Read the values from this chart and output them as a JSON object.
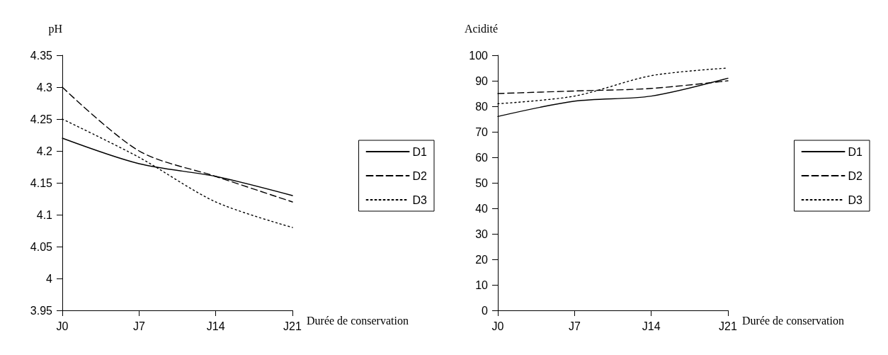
{
  "chart_data": [
    {
      "type": "line",
      "ylabel": "pH",
      "xlabel": "Durée de conservation",
      "categories": [
        "J0",
        "J7",
        "J14",
        "J21"
      ],
      "ylim": [
        3.95,
        4.35
      ],
      "yticks": [
        3.95,
        4,
        4.05,
        4.1,
        4.15,
        4.2,
        4.25,
        4.3,
        4.35
      ],
      "legend": "right",
      "grid": false,
      "marker": "none",
      "series": [
        {
          "name": "D1",
          "color": "#000000",
          "line_style": "solid",
          "values": [
            4.22,
            4.18,
            4.16,
            4.13
          ]
        },
        {
          "name": "D2",
          "color": "#000000",
          "line_style": "dashed",
          "values": [
            4.3,
            4.2,
            4.16,
            4.12
          ]
        },
        {
          "name": "D3",
          "color": "#000000",
          "line_style": "dotted",
          "values": [
            4.25,
            4.19,
            4.12,
            4.08
          ]
        }
      ]
    },
    {
      "type": "line",
      "ylabel": "Acidité",
      "xlabel": "Durée de conservation",
      "categories": [
        "J0",
        "J7",
        "J14",
        "J21"
      ],
      "ylim": [
        0,
        100
      ],
      "yticks": [
        0,
        10,
        20,
        30,
        40,
        50,
        60,
        70,
        80,
        90,
        100
      ],
      "legend": "right",
      "grid": false,
      "marker": "none",
      "series": [
        {
          "name": "D1",
          "color": "#000000",
          "line_style": "solid",
          "values": [
            76,
            82,
            84,
            91
          ]
        },
        {
          "name": "D2",
          "color": "#000000",
          "line_style": "dashed",
          "values": [
            85,
            86,
            87,
            90
          ]
        },
        {
          "name": "D3",
          "color": "#000000",
          "line_style": "dotted",
          "values": [
            81,
            84,
            92,
            95
          ]
        }
      ]
    }
  ]
}
